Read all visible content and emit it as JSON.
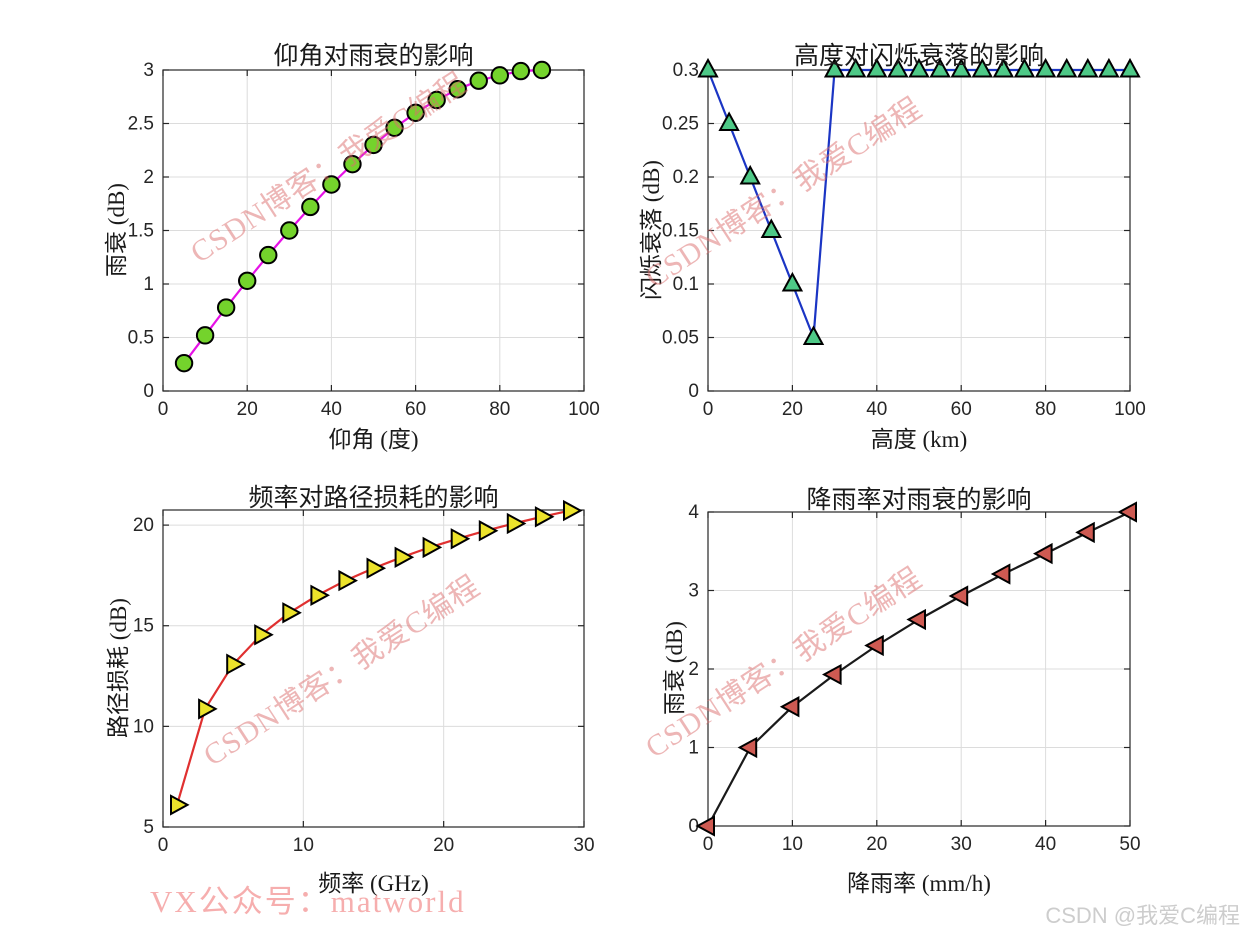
{
  "page": {
    "background": "#ffffff",
    "grid_color": "#dcdcdc",
    "axes_color": "#262626"
  },
  "watermarks": {
    "diagonal_text": "CSDN博客：我爱C编程",
    "diagonal_color": "#db6e6e",
    "bottom_left_text": "VX公众号：matworld",
    "bottom_left_color": "#f07d7d",
    "credit_text": "CSDN @我爱C编程",
    "credit_color": "#cdcdcd"
  },
  "chart_data": [
    {
      "type": "line",
      "title": "仰角对雨衰的影响",
      "xlabel": "仰角 (度)",
      "ylabel": "雨衰 (dB)",
      "x": [
        5,
        10,
        15,
        20,
        25,
        30,
        35,
        40,
        45,
        50,
        55,
        60,
        65,
        70,
        75,
        80,
        85,
        90
      ],
      "y": [
        0.26,
        0.52,
        0.78,
        1.03,
        1.27,
        1.5,
        1.72,
        1.93,
        2.12,
        2.3,
        2.46,
        2.6,
        2.72,
        2.82,
        2.9,
        2.95,
        2.99,
        3.0
      ],
      "xlim": [
        0,
        100
      ],
      "ylim": [
        0,
        3
      ],
      "xticks": [
        0,
        20,
        40,
        60,
        80,
        100
      ],
      "yticks": [
        0,
        0.5,
        1,
        1.5,
        2,
        2.5,
        3
      ],
      "grid": true,
      "legend": "none",
      "line_color": "#e612e6",
      "marker": "circle",
      "marker_face": "#74d32c",
      "marker_edge": "#000000"
    },
    {
      "type": "line",
      "title": "高度对闪烁衰落的影响",
      "xlabel": "高度 (km)",
      "ylabel": "闪烁衰落 (dB)",
      "x": [
        0,
        5,
        10,
        15,
        20,
        25,
        30,
        35,
        40,
        45,
        50,
        55,
        60,
        65,
        70,
        75,
        80,
        85,
        90,
        95,
        100
      ],
      "y": [
        0.3,
        0.25,
        0.2,
        0.15,
        0.1,
        0.05,
        0.3,
        0.3,
        0.3,
        0.3,
        0.3,
        0.3,
        0.3,
        0.3,
        0.3,
        0.3,
        0.3,
        0.3,
        0.3,
        0.3,
        0.3
      ],
      "xlim": [
        0,
        100
      ],
      "ylim": [
        0,
        0.3
      ],
      "xticks": [
        0,
        20,
        40,
        60,
        80,
        100
      ],
      "yticks": [
        0,
        0.05,
        0.1,
        0.15,
        0.2,
        0.25,
        0.3
      ],
      "grid": true,
      "legend": "none",
      "line_color": "#1b35c4",
      "marker": "triangle-up",
      "marker_face": "#4ec987",
      "marker_edge": "#000000"
    },
    {
      "type": "line",
      "title": "频率对路径损耗的影响",
      "xlabel": "频率 (GHz)",
      "ylabel": "路径损耗 (dB)",
      "x": [
        1,
        3,
        5,
        7,
        9,
        11,
        13,
        15,
        17,
        19,
        21,
        23,
        25,
        27,
        29
      ],
      "y": [
        6.1,
        10.87,
        13.09,
        14.55,
        15.64,
        16.51,
        17.24,
        17.86,
        18.4,
        18.89,
        19.32,
        19.72,
        20.08,
        20.41,
        20.72
      ],
      "xlim": [
        0,
        30
      ],
      "ylim": [
        5,
        20.75
      ],
      "xticks": [
        0,
        10,
        20,
        30
      ],
      "yticks": [
        5,
        10,
        15,
        20
      ],
      "grid": true,
      "legend": "none",
      "line_color": "#e03030",
      "marker": "triangle-right",
      "marker_face": "#ece32b",
      "marker_edge": "#000000"
    },
    {
      "type": "line",
      "title": "降雨率对雨衰的影响",
      "xlabel": "降雨率 (mm/h)",
      "ylabel": "雨衰 (dB)",
      "x": [
        0,
        5,
        10,
        15,
        20,
        25,
        30,
        35,
        40,
        45,
        50
      ],
      "y": [
        0,
        1.0,
        1.52,
        1.93,
        2.3,
        2.63,
        2.93,
        3.21,
        3.47,
        3.74,
        4.0
      ],
      "xlim": [
        0,
        50
      ],
      "ylim": [
        0,
        4
      ],
      "xticks": [
        0,
        10,
        20,
        30,
        40,
        50
      ],
      "yticks": [
        0,
        1,
        2,
        3,
        4
      ],
      "grid": true,
      "legend": "none",
      "line_color": "#1a1a1a",
      "marker": "triangle-left",
      "marker_face": "#ce5a52",
      "marker_edge": "#000000"
    }
  ]
}
